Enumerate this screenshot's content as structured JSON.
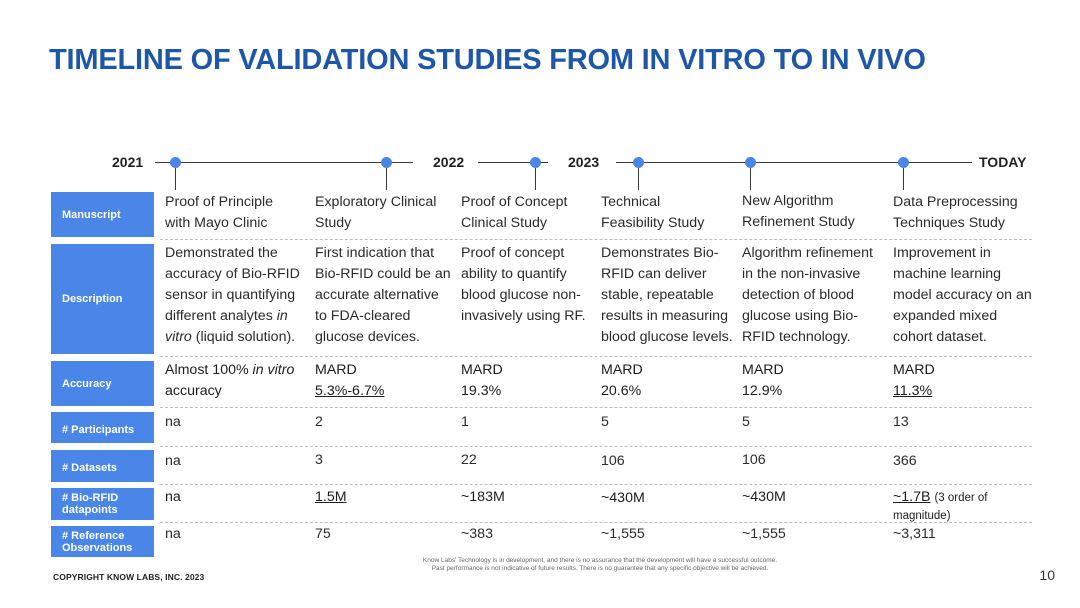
{
  "title": "TIMELINE OF VALIDATION STUDIES FROM IN VITRO TO IN VIVO",
  "timeline": {
    "years": [
      "2021",
      "2022",
      "2023",
      "TODAY"
    ]
  },
  "row_headers": {
    "manuscript": "Manuscript",
    "description": "Description",
    "accuracy": "Accuracy",
    "participants": "# Participants",
    "datasets": "# Datasets",
    "datapoints_1": "# Bio-RFID",
    "datapoints_2": "datapoints",
    "reference_1": "# Reference",
    "reference_2": "Observations"
  },
  "studies": [
    {
      "manuscript": [
        "Proof of Principle",
        "with Mayo Clinic"
      ],
      "description": [
        "Demonstrated the",
        "accuracy of Bio-RFID",
        "sensor in quantifying",
        "different analytes",
        "in",
        "vitro",
        "(liquid solution)."
      ],
      "accuracy_a": "Almost 100%",
      "accuracy_italic": "in vitro",
      "accuracy_b": "accuracy",
      "participants": "na",
      "datasets": "na",
      "datapoints": "na",
      "datapoints_note": "",
      "reference": "na"
    },
    {
      "manuscript": [
        "Exploratory Clinical",
        "Study"
      ],
      "description": [
        "First indication that",
        "Bio-RFID could be an",
        "accurate alternative",
        "to FDA-cleared",
        "glucose devices."
      ],
      "accuracy_a": "MARD",
      "accuracy_b": "5.3%-6.7%",
      "participants": "2",
      "datasets": "3",
      "datapoints": "1.5M",
      "datapoints_note": "",
      "reference": "75"
    },
    {
      "manuscript": [
        "Proof of Concept",
        "Clinical Study"
      ],
      "description": [
        "Proof of concept",
        "ability to quantify",
        "blood glucose non-",
        "invasively using RF."
      ],
      "accuracy_a": "MARD",
      "accuracy_b": "19.3%",
      "participants": "1",
      "datasets": "22",
      "datapoints": "~183M",
      "datapoints_note": "",
      "reference": "~383"
    },
    {
      "manuscript": [
        "Technical",
        "Feasibility Study"
      ],
      "description": [
        "Demonstrates Bio-",
        "RFID can deliver",
        "stable, repeatable",
        "results in measuring",
        "blood glucose levels."
      ],
      "accuracy_a": "MARD",
      "accuracy_b": "20.6%",
      "participants": "5",
      "datasets": "106",
      "datapoints": "~430M",
      "datapoints_note": "",
      "reference": "~1,555"
    },
    {
      "manuscript": [
        "New Algorithm",
        "Refinement Study"
      ],
      "description": [
        "Algorithm refinement",
        "in the non-invasive",
        "detection of blood",
        "glucose using Bio-",
        "RFID technology."
      ],
      "accuracy_a": "MARD",
      "accuracy_b": "12.9%",
      "participants": "5",
      "datasets": "106",
      "datapoints": "~430M",
      "datapoints_note": "",
      "reference": "~1,555"
    },
    {
      "manuscript": [
        "Data Preprocessing",
        "Techniques Study"
      ],
      "description": [
        "Improvement in",
        "machine learning",
        "model accuracy on an",
        "expanded mixed",
        "cohort dataset."
      ],
      "accuracy_a": "MARD",
      "accuracy_b": "11.3%",
      "participants": "13",
      "datasets": "366",
      "datapoints": "~1.7B",
      "datapoints_note": "(3 order of",
      "datapoints_note2": "magnitude)",
      "reference": "~3,311"
    }
  ],
  "disclaimer": [
    "Know Labs' Technology is in development, and there is no assurance that the development will have a successful outcome.",
    "Past performance is not indicative of future results. There is no guarantee that any specific objective will be achieved."
  ],
  "copyright": "COPYRIGHT KNOW LABS, INC. 2023",
  "page_number": "10"
}
